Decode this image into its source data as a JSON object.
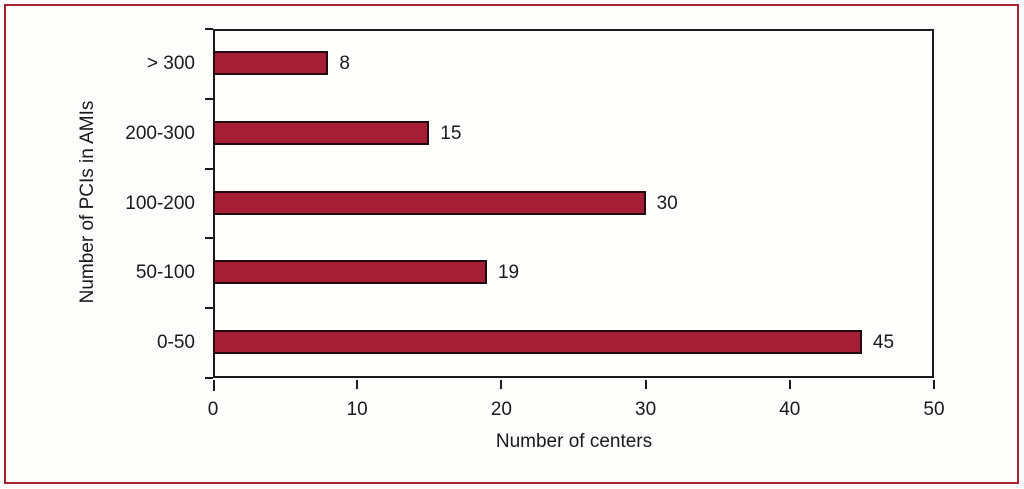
{
  "chart_data": {
    "type": "bar",
    "orientation": "horizontal",
    "categories": [
      "> 300",
      "200-300",
      "100-200",
      "50-100",
      "0-50"
    ],
    "values": [
      8,
      15,
      30,
      19,
      45
    ],
    "title": "",
    "xlabel": "Number of centers",
    "ylabel": "Number of PCIs in AMIs",
    "xlim": [
      0,
      50
    ],
    "xticks": [
      0,
      10,
      20,
      30,
      40,
      50
    ],
    "grid": "off",
    "legend": "none",
    "data_labels": "shown at bar ends",
    "colors": {
      "bar_fill": "#a51e36",
      "bar_border": "#230a10",
      "plot_border": "#1b1b1b",
      "figure_frame": "#a32638",
      "text": "#1a1a1a",
      "background": "#fdfdfc"
    }
  }
}
